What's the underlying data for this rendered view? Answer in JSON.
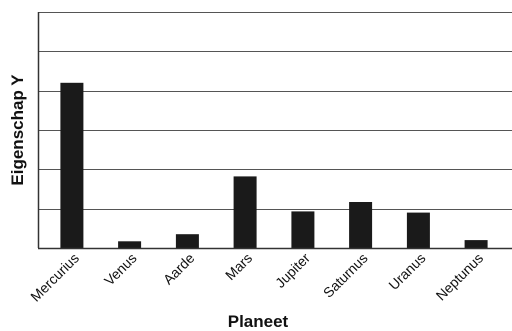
{
  "chart_data": {
    "type": "bar",
    "categories": [
      "Mercurius",
      "Venus",
      "Aarde",
      "Mars",
      "Jupiter",
      "Saturnus",
      "Uranus",
      "Neptunus"
    ],
    "values": [
      4.2,
      0.17,
      0.35,
      1.82,
      0.93,
      1.17,
      0.9,
      0.2
    ],
    "title": "",
    "xlabel": "Planeet",
    "ylabel": "Eigenschap Y",
    "ylim": [
      0,
      6
    ],
    "gridlines": [
      0,
      1,
      2,
      3,
      4,
      5,
      6
    ],
    "grid": true,
    "y_tick_labels_shown": false,
    "bar_color": "#1a1a1a",
    "grid_color": "#555555",
    "axis_color": "#333333"
  }
}
